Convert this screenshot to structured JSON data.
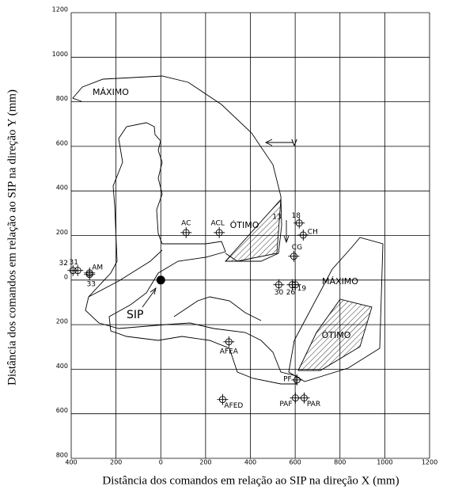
{
  "chart_data": {
    "type": "scatter",
    "x_label": "Distância dos comandos em relação ao SIP na direção X  (mm)",
    "y_label": "Distância dos comandos em relação ao SIP na direção Y  (mm)",
    "xlim": [
      -400,
      1200
    ],
    "ylim": [
      -800,
      1200
    ],
    "xticks": [
      {
        "value": -400,
        "label": "400"
      },
      {
        "value": -200,
        "label": "200"
      },
      0,
      200,
      400,
      600,
      800,
      1000,
      1200
    ],
    "yticks": [
      {
        "value": -800,
        "label": "800"
      },
      {
        "value": -600,
        "label": "600"
      },
      {
        "value": -400,
        "label": "400"
      },
      {
        "value": -200,
        "label": "200"
      },
      0,
      200,
      400,
      600,
      800,
      1000,
      1200
    ],
    "grid": true,
    "points": [
      {
        "label": "AC",
        "x": 113,
        "y": 213
      },
      {
        "label": "ACL",
        "x": 261,
        "y": 213
      },
      {
        "label": "18",
        "x": 618,
        "y": 256
      },
      {
        "label": "CH",
        "x": 636,
        "y": 202
      },
      {
        "label": "CG",
        "x": 594,
        "y": 107
      },
      {
        "label": "30",
        "x": 527,
        "y": -21
      },
      {
        "label": "26",
        "x": 587,
        "y": -21
      },
      {
        "label": "19",
        "x": 601,
        "y": -21
      },
      {
        "label": "32",
        "x": -392,
        "y": 43
      },
      {
        "label": "31",
        "x": -371,
        "y": 43
      },
      {
        "label": "AM",
        "x": -318,
        "y": 32
      },
      {
        "label": "33",
        "x": -318,
        "y": 25
      },
      {
        "label": "AFEA",
        "x": 304,
        "y": -277
      },
      {
        "label": "PF",
        "x": 608,
        "y": -448
      },
      {
        "label": "PAF",
        "x": 601,
        "y": -529
      },
      {
        "label": "PAR",
        "x": 640,
        "y": -529
      },
      {
        "label": "AFED",
        "x": 276,
        "y": -536
      }
    ],
    "origin_label": "SIP",
    "annotations": [
      "MÁXIMO",
      "MÁXIMO",
      "ÓTIMO",
      "ÓTIMO",
      "V",
      "13"
    ]
  }
}
